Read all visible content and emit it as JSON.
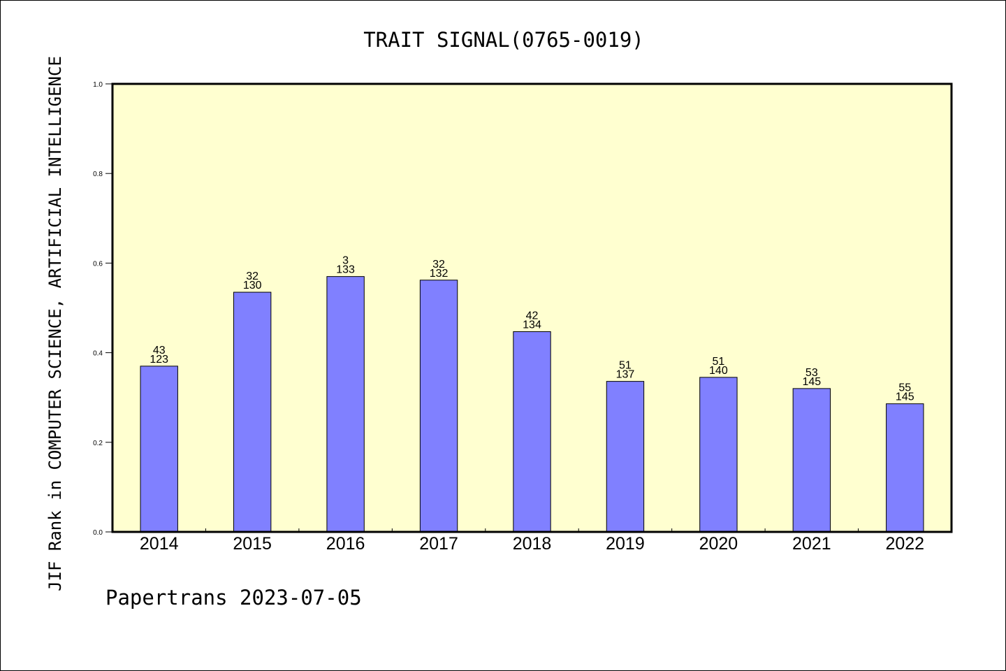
{
  "chart_data": {
    "type": "bar",
    "title": "TRAIT SIGNAL(0765-0019)",
    "ylabel": "JIF Rank in COMPUTER SCIENCE, ARTIFICIAL INTELLIGENCE",
    "xlabel": "",
    "footer": "Papertrans 2023-07-05",
    "categories": [
      "2014",
      "2015",
      "2016",
      "2017",
      "2018",
      "2019",
      "2020",
      "2021",
      "2022"
    ],
    "values": [
      0.37,
      0.535,
      0.57,
      0.562,
      0.447,
      0.336,
      0.345,
      0.32,
      0.286
    ],
    "rank_labels": [
      "43",
      "32",
      "3",
      "32",
      "42",
      "51",
      "51",
      "53",
      "55"
    ],
    "total_labels": [
      "123",
      "130",
      "133",
      "132",
      "134",
      "137",
      "140",
      "145",
      "145"
    ],
    "yticks": [
      "0.0",
      "0.2",
      "0.4",
      "0.6",
      "0.8",
      "1.0"
    ],
    "ylim": [
      0,
      1.0
    ],
    "grid": false,
    "colors": {
      "plot_background": "#ffffd0",
      "bar_fill": "#8080ff",
      "bar_stroke": "#000000",
      "axis": "#000000",
      "text": "#000000"
    }
  }
}
